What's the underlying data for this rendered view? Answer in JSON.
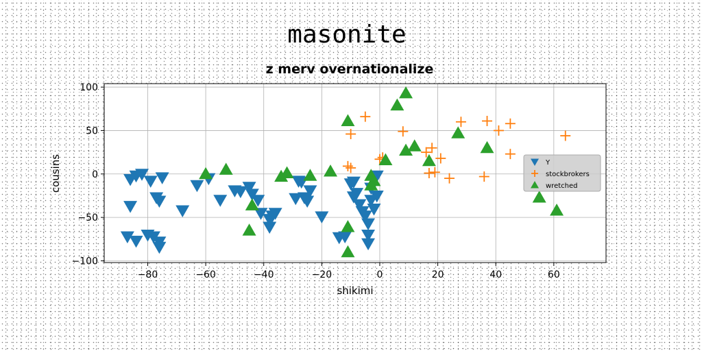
{
  "chart_data": {
    "type": "scatter",
    "title": "masonite",
    "subtitle": "z merv overnationalize",
    "xlabel": "shikimi",
    "ylabel": "cousins",
    "xlim": [
      -95,
      78
    ],
    "ylim": [
      -102,
      104
    ],
    "xticks": [
      -80,
      -60,
      -40,
      -20,
      0,
      20,
      40,
      60
    ],
    "yticks": [
      -100,
      -50,
      0,
      50,
      100
    ],
    "grid": true,
    "legend_position": "center-right",
    "series": [
      {
        "name": "Y",
        "marker": "triangle-down",
        "color": "#1f77b4",
        "points": [
          [
            -84,
            -2
          ],
          [
            -82,
            0
          ],
          [
            -86,
            -6
          ],
          [
            -79,
            -8
          ],
          [
            -75,
            -4
          ],
          [
            -86,
            -37
          ],
          [
            -77,
            -27
          ],
          [
            -76,
            -31
          ],
          [
            -87,
            -72
          ],
          [
            -84,
            -77
          ],
          [
            -80,
            -70
          ],
          [
            -78,
            -72
          ],
          [
            -76,
            -78
          ],
          [
            -76,
            -84
          ],
          [
            -68,
            -42
          ],
          [
            -63,
            -13
          ],
          [
            -59,
            -5
          ],
          [
            -55,
            -30
          ],
          [
            -50,
            -19
          ],
          [
            -48,
            -20
          ],
          [
            -45,
            -15
          ],
          [
            -44,
            -23
          ],
          [
            -42,
            -30
          ],
          [
            -41,
            -45
          ],
          [
            -38,
            -52
          ],
          [
            -38,
            -61
          ],
          [
            -37,
            -48
          ],
          [
            -36,
            -45
          ],
          [
            -29,
            -28
          ],
          [
            -28,
            -8
          ],
          [
            -27,
            -9
          ],
          [
            -26,
            -27
          ],
          [
            -25,
            -31
          ],
          [
            -24,
            -19
          ],
          [
            -20,
            -49
          ],
          [
            -14,
            -73
          ],
          [
            -12,
            -72
          ],
          [
            -10,
            -11
          ],
          [
            -9,
            -9
          ],
          [
            -9,
            -26
          ],
          [
            -8,
            -22
          ],
          [
            -7,
            -35
          ],
          [
            -6,
            -43
          ],
          [
            -5,
            -48
          ],
          [
            -4,
            -57
          ],
          [
            -4,
            -70
          ],
          [
            -4,
            -80
          ],
          [
            -3,
            -16
          ],
          [
            -3,
            -30
          ],
          [
            -2,
            -40
          ],
          [
            -1,
            -2
          ],
          [
            -1,
            -25
          ]
        ]
      },
      {
        "name": "stockbrokers",
        "marker": "plus",
        "color": "#ff7f0e",
        "points": [
          [
            -10,
            46
          ],
          [
            -11,
            9
          ],
          [
            -10,
            7
          ],
          [
            -5,
            66
          ],
          [
            0,
            17
          ],
          [
            1,
            19
          ],
          [
            8,
            49
          ],
          [
            16,
            25
          ],
          [
            17,
            1
          ],
          [
            18,
            30
          ],
          [
            19,
            2
          ],
          [
            21,
            18
          ],
          [
            24,
            -5
          ],
          [
            28,
            60
          ],
          [
            36,
            -3
          ],
          [
            37,
            61
          ],
          [
            41,
            50
          ],
          [
            45,
            58
          ],
          [
            45,
            23
          ],
          [
            64,
            44
          ]
        ]
      },
      {
        "name": "wretched",
        "marker": "triangle-up",
        "color": "#2ca02c",
        "points": [
          [
            -11,
            61
          ],
          [
            6,
            79
          ],
          [
            9,
            93
          ],
          [
            9,
            27
          ],
          [
            12,
            32
          ],
          [
            17,
            15
          ],
          [
            27,
            47
          ],
          [
            37,
            30
          ],
          [
            -60,
            0
          ],
          [
            -53,
            5
          ],
          [
            -44,
            -36
          ],
          [
            -45,
            -65
          ],
          [
            -34,
            -3
          ],
          [
            -32,
            1
          ],
          [
            -24,
            -2
          ],
          [
            -17,
            3
          ],
          [
            -11,
            -61
          ],
          [
            -11,
            -90
          ],
          [
            -3,
            -2
          ],
          [
            -3,
            -13
          ],
          [
            -2,
            -8
          ],
          [
            2,
            16
          ],
          [
            55,
            -27
          ],
          [
            61,
            -42
          ]
        ]
      }
    ]
  }
}
